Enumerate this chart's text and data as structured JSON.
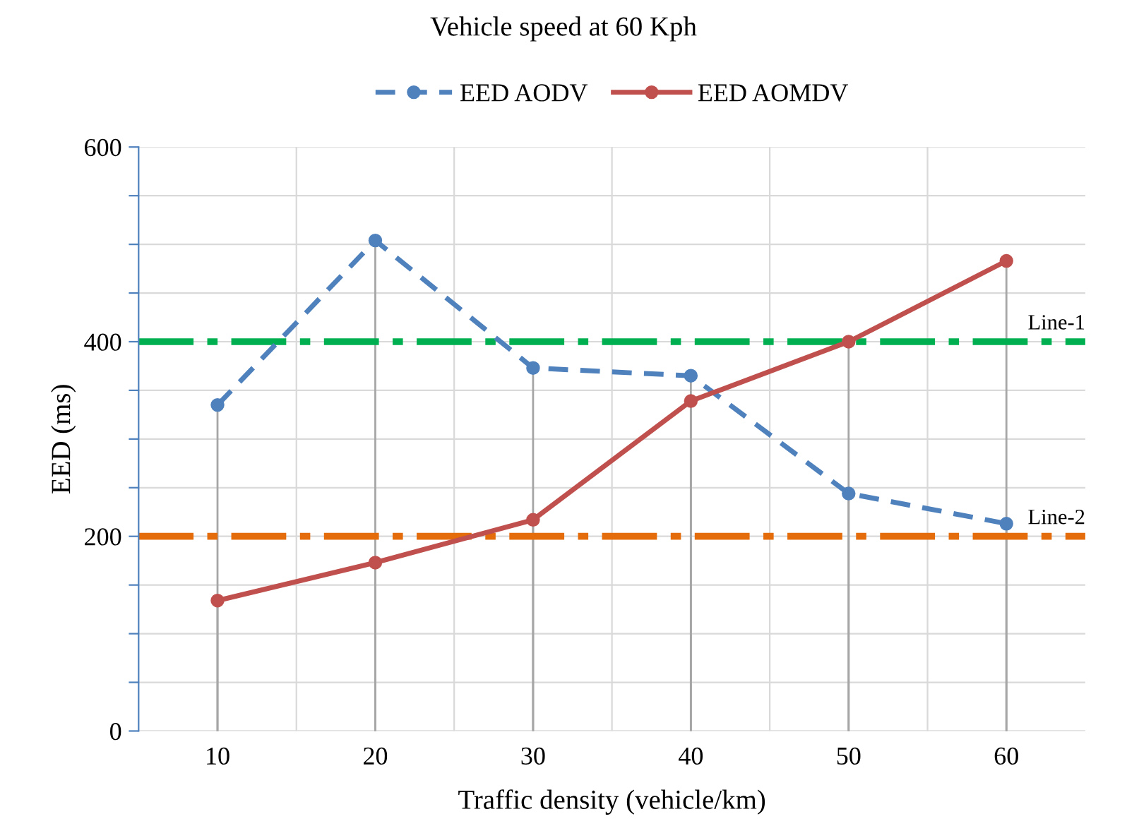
{
  "chart_data": {
    "type": "line",
    "title": "Vehicle speed at 60 Kph",
    "xlabel": "Traffic density (vehicle/km)",
    "ylabel": "EED (ms)",
    "categories": [
      "10",
      "20",
      "30",
      "40",
      "50",
      "60"
    ],
    "series": [
      {
        "name": "EED AODV",
        "color": "#4f81bd",
        "line_style": "dashed",
        "values": [
          335,
          504,
          373,
          365,
          244,
          213
        ]
      },
      {
        "name": "EED AOMDV",
        "color": "#c0504d",
        "line_style": "solid",
        "values": [
          134,
          173,
          217,
          339,
          400,
          483
        ]
      }
    ],
    "marker": "circle",
    "ylim": [
      0,
      600
    ],
    "yticks": [
      0,
      {
        "value": 50,
        "label": null
      },
      {
        "value": 100,
        "label": null
      },
      {
        "value": 150,
        "label": null
      },
      200,
      {
        "value": 250,
        "label": null
      },
      {
        "value": 300,
        "label": null
      },
      {
        "value": 350,
        "label": null
      },
      400,
      {
        "value": 450,
        "label": null
      },
      {
        "value": 500,
        "label": null
      },
      {
        "value": 550,
        "label": null
      },
      600
    ],
    "ref_lines": [
      {
        "axis": "y",
        "value": 400,
        "label": "Line-1",
        "color": "#00b050",
        "line_style": "dashed"
      },
      {
        "axis": "y",
        "value": 200,
        "label": "Line-2",
        "color": "#e46c0a",
        "line_style": "dashed"
      }
    ],
    "grid": true,
    "legend": "top"
  }
}
